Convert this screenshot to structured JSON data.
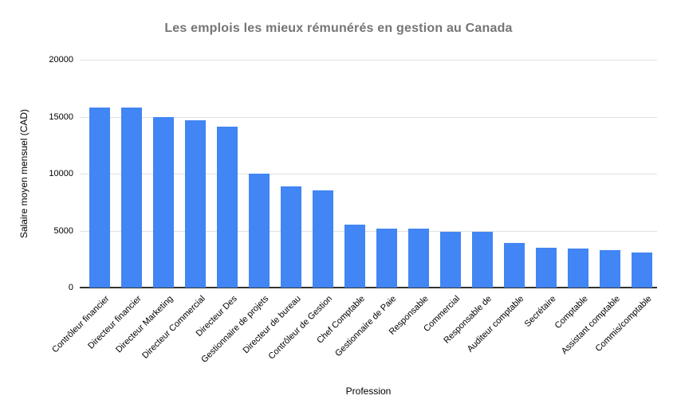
{
  "chart_data": {
    "type": "bar",
    "title": "Les emplois les mieux rémunérés en gestion au Canada",
    "xlabel": "Profession",
    "ylabel": "Salaire moyen mensuel (CAD)",
    "categories": [
      "Contrôleur financier",
      "Directeur financier",
      "Directeur Marketing",
      "Directeur Commercial",
      "Directeur Des",
      "Gestionnaire de projets",
      "Directeur de bureau",
      "Contrôleur de Gestion",
      "Chef Comptable",
      "Gestionnaire de Paie",
      "Responsable",
      "Commercial",
      "Responsable de",
      "Auditeur comptable",
      "Secrétaire",
      "Comptable",
      "Assistant comptable",
      "Commis/comptable"
    ],
    "values": [
      15800,
      15800,
      14950,
      14700,
      14100,
      10000,
      8870,
      8500,
      5550,
      5170,
      5170,
      4900,
      4900,
      3910,
      3490,
      3420,
      3280,
      3070
    ],
    "ylim": [
      0,
      20000
    ],
    "yticks": [
      0,
      5000,
      10000,
      15000,
      20000
    ],
    "grid": true,
    "legend": "none"
  },
  "colors": {
    "bar": "#4285f4",
    "title": "#757575",
    "gridline": "#e0e0e0",
    "baseline": "#333333",
    "text": "#000000",
    "background": "#ffffff"
  }
}
